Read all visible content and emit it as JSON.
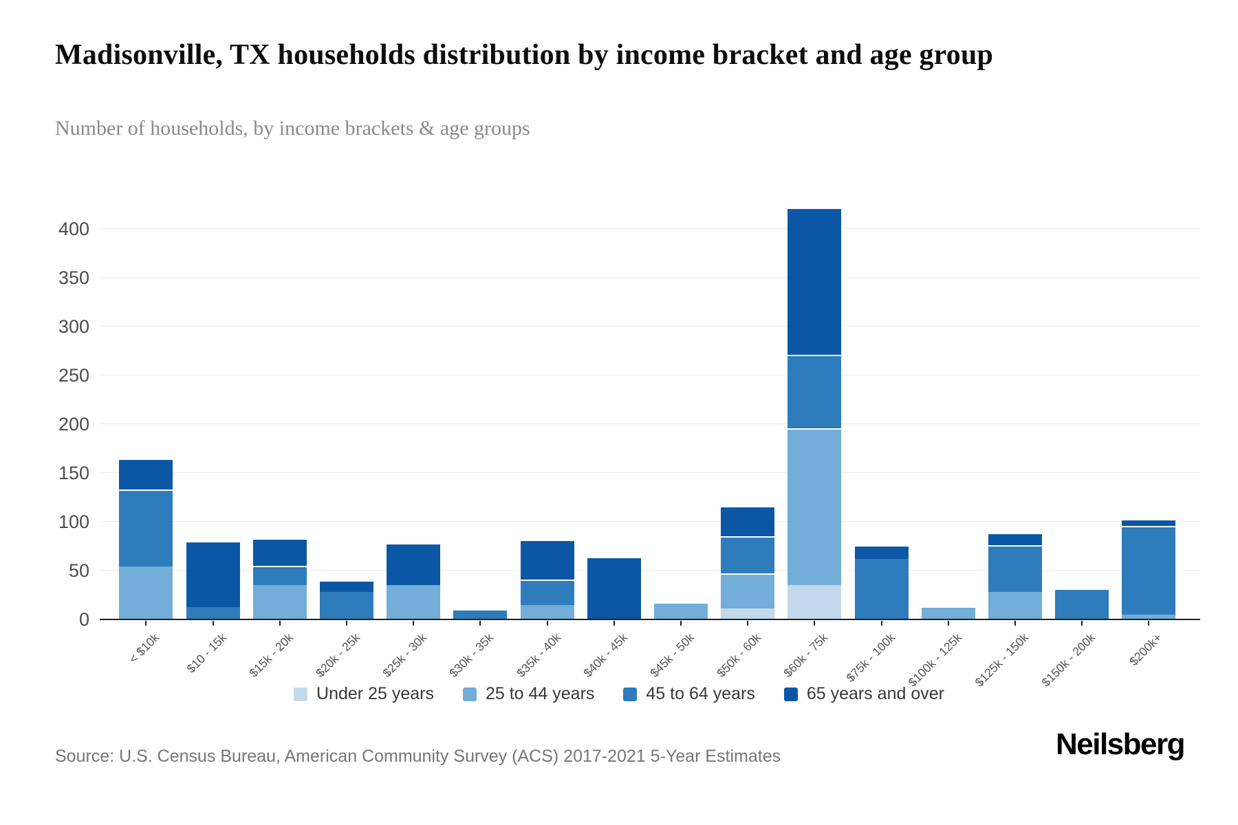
{
  "header": {
    "title": "Madisonville, TX households distribution by income bracket and age group",
    "subtitle": "Number of households, by income brackets & age groups"
  },
  "chart_data": {
    "type": "bar",
    "stacked": true,
    "title": "Madisonville, TX households distribution by income bracket and age group",
    "xlabel": "",
    "ylabel": "Number of households",
    "categories": [
      "< $10k",
      "$10 - 15k",
      "$15k - 20k",
      "$20k - 25k",
      "$25k - 30k",
      "$30k - 35k",
      "$35k - 40k",
      "$40k - 45k",
      "$45k - 50k",
      "$50k - 60k",
      "$60k - 75k",
      "$75k - 100k",
      "$100k - 125k",
      "$125k - 150k",
      "$150k - 200k",
      "$200k+"
    ],
    "series": [
      {
        "name": "Under 25 years",
        "color": "#c3d9eb",
        "values": [
          0,
          0,
          0,
          0,
          0,
          0,
          0,
          0,
          0,
          11,
          35,
          0,
          0,
          0,
          0,
          0
        ]
      },
      {
        "name": "25 to 44 years",
        "color": "#72aed7",
        "values": [
          54,
          0,
          35,
          0,
          35,
          0,
          15,
          0,
          16,
          36,
          161,
          0,
          12,
          28,
          0,
          5
        ]
      },
      {
        "name": "45 to 64 years",
        "color": "#2e7cbb",
        "values": [
          79,
          13,
          20,
          28,
          0,
          9,
          26,
          0,
          0,
          38,
          75,
          62,
          0,
          48,
          30,
          91
        ]
      },
      {
        "name": "65 years and over",
        "color": "#0b57a6",
        "values": [
          32,
          67,
          28,
          12,
          43,
          0,
          41,
          63,
          0,
          31,
          151,
          14,
          0,
          13,
          0,
          7
        ]
      }
    ],
    "totals": [
      165,
      80,
      83,
      40,
      78,
      9,
      82,
      63,
      16,
      116,
      422,
      76,
      12,
      89,
      30,
      103
    ],
    "ylim": [
      0,
      440
    ],
    "yticks": [
      0,
      50,
      100,
      150,
      200,
      250,
      300,
      350,
      400
    ],
    "grid": true,
    "legend_position": "bottom"
  },
  "footer": {
    "source": "Source: U.S. Census Bureau, American Community Survey (ACS) 2017-2021 5-Year Estimates",
    "logo": "Neilsberg"
  }
}
